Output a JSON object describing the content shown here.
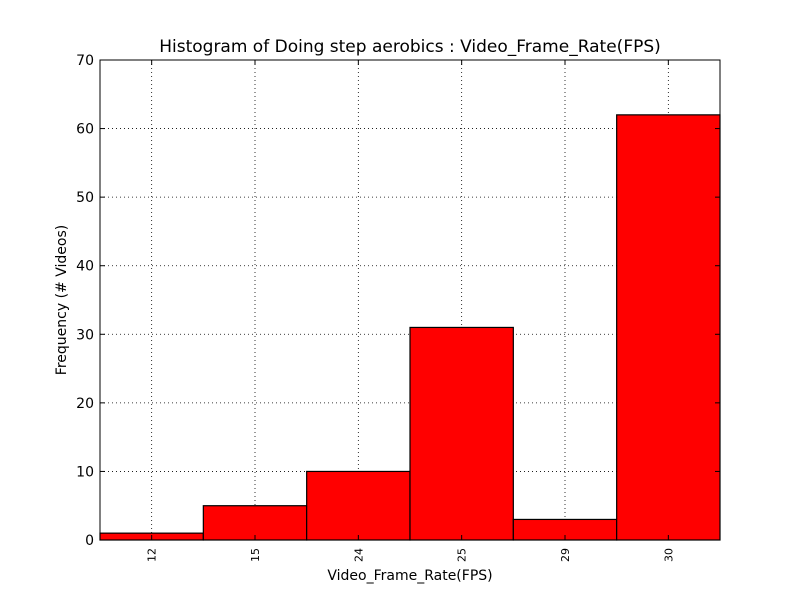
{
  "chart_data": {
    "type": "bar",
    "title": "Histogram of Doing step aerobics : Video_Frame_Rate(FPS)",
    "xlabel": "Video_Frame_Rate(FPS)",
    "ylabel": "Frequency (# Videos)",
    "categories": [
      "12",
      "15",
      "24",
      "25",
      "29",
      "30"
    ],
    "values": [
      1,
      5,
      10,
      31,
      3,
      62
    ],
    "ylim": [
      0,
      70
    ],
    "yticks": [
      0,
      10,
      20,
      30,
      40,
      50,
      60,
      70
    ],
    "grid": true,
    "bar_color": "#ff0000",
    "edge_color": "#000000"
  }
}
